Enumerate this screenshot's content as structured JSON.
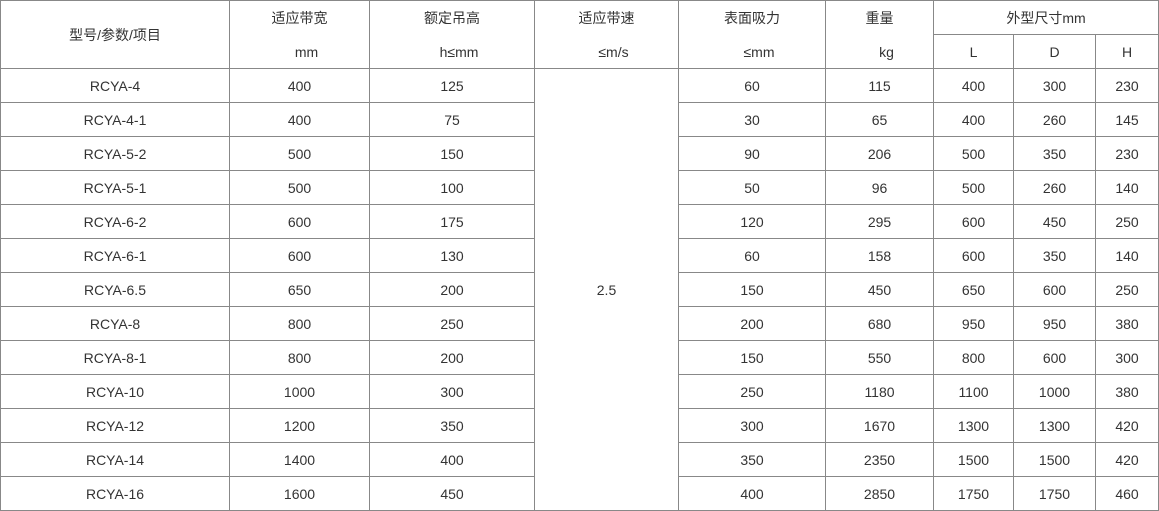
{
  "header": {
    "model": "型号/参数/项目",
    "cols": [
      {
        "label": "适应带宽",
        "unit": "mm"
      },
      {
        "label": "额定吊高",
        "unit": "h≤mm"
      },
      {
        "label": "适应带速",
        "unit": "≤m/s"
      },
      {
        "label": "表面吸力",
        "unit": "≤mm"
      },
      {
        "label": "重量",
        "unit": "kg"
      }
    ],
    "dims": "外型尺寸mm",
    "dim_cols": [
      "L",
      "D",
      "H"
    ]
  },
  "speed": "2.5",
  "rows": [
    [
      "RCYA-4",
      "400",
      "125",
      "60",
      "115",
      "400",
      "300",
      "230"
    ],
    [
      "RCYA-4-1",
      "400",
      "75",
      "30",
      "65",
      "400",
      "260",
      "145"
    ],
    [
      "RCYA-5-2",
      "500",
      "150",
      "90",
      "206",
      "500",
      "350",
      "230"
    ],
    [
      "RCYA-5-1",
      "500",
      "100",
      "50",
      "96",
      "500",
      "260",
      "140"
    ],
    [
      "RCYA-6-2",
      "600",
      "175",
      "120",
      "295",
      "600",
      "450",
      "250"
    ],
    [
      "RCYA-6-1",
      "600",
      "130",
      "60",
      "158",
      "600",
      "350",
      "140"
    ],
    [
      "RCYA-6.5",
      "650",
      "200",
      "150",
      "450",
      "650",
      "600",
      "250"
    ],
    [
      "RCYA-8",
      "800",
      "250",
      "200",
      "680",
      "950",
      "950",
      "380"
    ],
    [
      "RCYA-8-1",
      "800",
      "200",
      "150",
      "550",
      "800",
      "600",
      "300"
    ],
    [
      "RCYA-10",
      "1000",
      "300",
      "250",
      "1180",
      "1100",
      "1000",
      "380"
    ],
    [
      "RCYA-12",
      "1200",
      "350",
      "300",
      "1670",
      "1300",
      "1300",
      "420"
    ],
    [
      "RCYA-14",
      "1400",
      "400",
      "350",
      "2350",
      "1500",
      "1500",
      "420"
    ],
    [
      "RCYA-16",
      "1600",
      "450",
      "400",
      "2850",
      "1750",
      "1750",
      "460"
    ]
  ]
}
